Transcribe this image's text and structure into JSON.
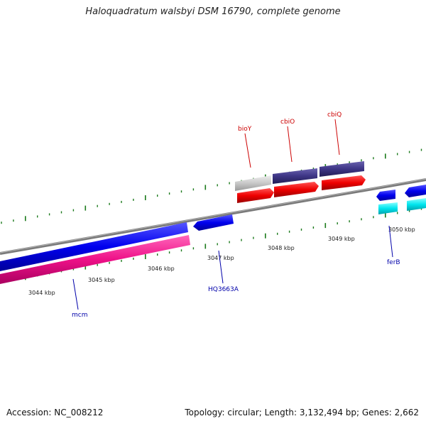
{
  "title": "Haloquadratum walsbyi DSM 16790, complete genome",
  "footer": {
    "accession": "Accession: NC_008212",
    "topology": "Topology: circular; Length: 3,132,494 bp; Genes: 2,662"
  },
  "scale_labels": [
    "3044 kbp",
    "3045 kbp",
    "3046 kbp",
    "3047 kbp",
    "3048 kbp",
    "3049 kbp",
    "3050 kbp"
  ],
  "gene_labels": [
    {
      "text": "bioY",
      "color": "#cc0000"
    },
    {
      "text": "cbiO",
      "color": "#cc0000"
    },
    {
      "text": "cbiQ",
      "color": "#cc0000"
    },
    {
      "text": "mcm",
      "color": "#0000aa"
    },
    {
      "text": "HQ3663A",
      "color": "#0000aa"
    },
    {
      "text": "ferB",
      "color": "#0000aa"
    }
  ],
  "colors": {
    "backbone": "#808080",
    "gene_forward": "#0000ee",
    "gene_reverse": "#ee0000",
    "gene_purple": "#3d3585",
    "gene_pink": "#ee1188",
    "gene_gray": "#c8c8c8",
    "gene_cyan": "#00e5ee",
    "tick": "#1b7a1b"
  }
}
